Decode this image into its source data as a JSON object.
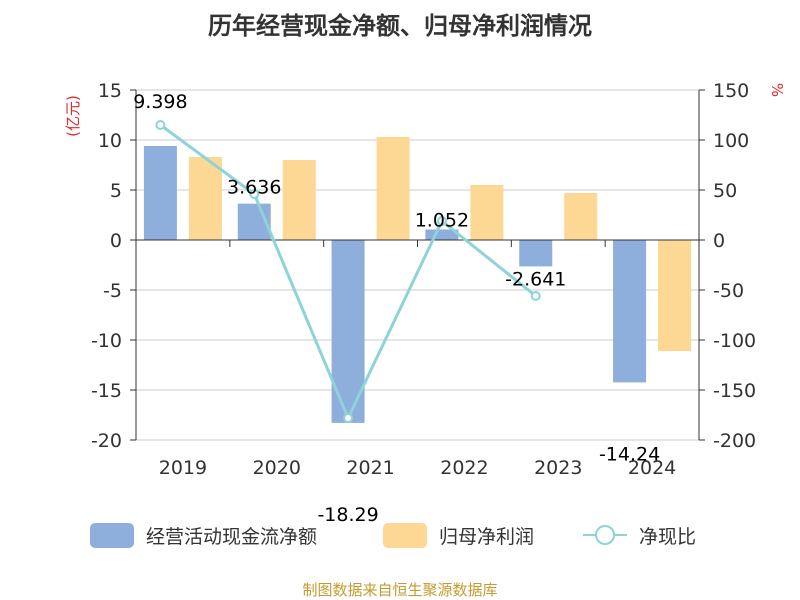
{
  "chart_data": {
    "type": "bar",
    "title": "历年经营现金净额、归母净利润情况",
    "categories": [
      "2019",
      "2020",
      "2021",
      "2022",
      "2023",
      "2024"
    ],
    "y_left": {
      "unit": "(亿元)",
      "min": -20,
      "max": 15,
      "step": 5,
      "ticks": [
        "15",
        "10",
        "5",
        "0",
        "-5",
        "-10",
        "-15",
        "-20"
      ]
    },
    "y_right": {
      "unit": "%",
      "min": -200,
      "max": 150,
      "step": 50,
      "ticks": [
        "150",
        "100",
        "50",
        "0",
        "-50",
        "-100",
        "-150",
        "-200"
      ]
    },
    "series": [
      {
        "name": "经营活动现金流净额",
        "type": "bar",
        "axis": "left",
        "color": "#8eaedb",
        "values": [
          9.398,
          3.636,
          -18.29,
          1.052,
          -2.641,
          -14.24
        ],
        "labels": [
          "9.398",
          "3.636",
          "-18.29",
          "1.052",
          "-2.641",
          "-14.24"
        ]
      },
      {
        "name": "归母净利润",
        "type": "bar",
        "axis": "left",
        "color": "#fdd794",
        "values": [
          8.3,
          8.0,
          10.3,
          5.5,
          4.7,
          -11.1
        ]
      },
      {
        "name": "净现比",
        "type": "line",
        "axis": "right",
        "color": "#8dd3d7",
        "values": [
          115,
          46,
          -178,
          19,
          -56,
          null
        ]
      }
    ],
    "grid": true,
    "legend_position": "bottom"
  },
  "source": {
    "text": "制图数据来自恒生聚源数据库",
    "color": "#c79a2e"
  },
  "colors": {
    "axis": "#333333",
    "grid": "#cccccc",
    "unit": "#e3262b"
  }
}
